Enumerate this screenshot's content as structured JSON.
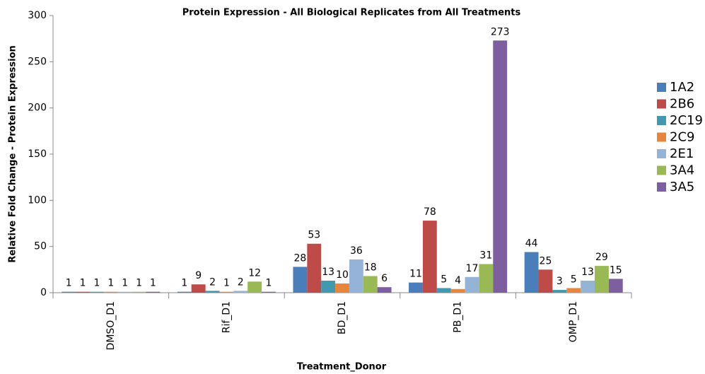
{
  "chart_data": {
    "type": "bar",
    "title": "Protein Expression - All Biological Replicates from All Treatments",
    "x_label": "Treatment_Donor",
    "y_label": "Relative Fold Change - Protein Expression",
    "categories": [
      "DMSO_D1",
      "Rif_D1",
      "BD_D1",
      "PB_D1",
      "OMP_D1"
    ],
    "series": [
      {
        "name": "1A2",
        "color": "#4a7ebb",
        "values": [
          1,
          1,
          28,
          11,
          44
        ]
      },
      {
        "name": "2B6",
        "color": "#be4b48",
        "values": [
          1,
          9,
          53,
          78,
          25
        ]
      },
      {
        "name": "2C19",
        "color": "#4198af",
        "values": [
          1,
          2,
          13,
          5,
          3
        ]
      },
      {
        "name": "2C9",
        "color": "#e8853d",
        "values": [
          1,
          1,
          10,
          4,
          5
        ]
      },
      {
        "name": "2E1",
        "color": "#95b3d7",
        "values": [
          1,
          2,
          36,
          17,
          13
        ]
      },
      {
        "name": "3A4",
        "color": "#98b954",
        "values": [
          1,
          12,
          18,
          31,
          29
        ]
      },
      {
        "name": "3A5",
        "color": "#7d5fa0",
        "values": [
          1,
          1,
          6,
          273,
          15
        ]
      }
    ],
    "ylim": [
      0,
      300
    ],
    "yticks": [
      0,
      50,
      100,
      150,
      200,
      250,
      300
    ],
    "grid": false,
    "legend": "right",
    "data_labels": true
  }
}
